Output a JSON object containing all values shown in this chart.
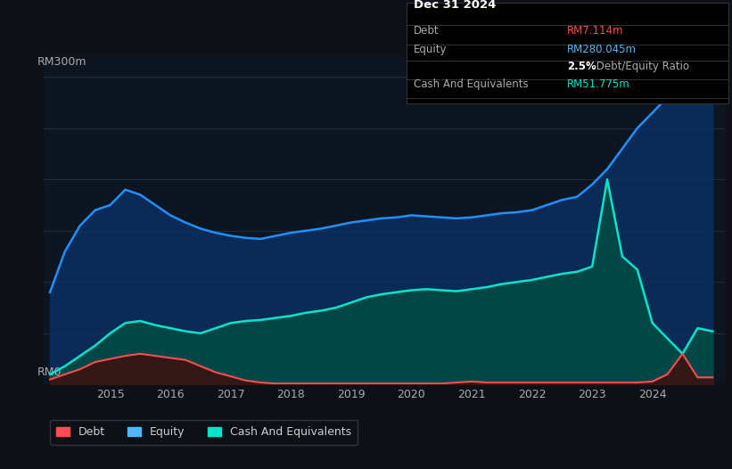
{
  "background_color": "#0d1117",
  "plot_bg_color": "#0d1520",
  "title_box": {
    "date": "Dec 31 2024",
    "debt_label": "Debt",
    "debt_value": "RM7.114m",
    "debt_color": "#ff4d4d",
    "equity_label": "Equity",
    "equity_value": "RM280.045m",
    "equity_color": "#4db8ff",
    "ratio_bold": "2.5%",
    "ratio_text": " Debt/Equity Ratio",
    "cash_label": "Cash And Equivalents",
    "cash_value": "RM51.775m",
    "cash_color": "#00e5cc",
    "box_bg": "#000000",
    "box_text": "#aaaaaa"
  },
  "ylabel_top": "RM300m",
  "ylabel_bottom": "RM0",
  "grid_color": "#1e2d3d",
  "line_color_equity": "#1e90ff",
  "line_color_cash": "#00e5cc",
  "line_color_debt": "#ff4d4d",
  "fill_color_equity": "#0a3060",
  "fill_color_cash": "#004d45",
  "fill_color_debt": "#3d1010",
  "equity_data": {
    "x": [
      2014.0,
      2014.25,
      2014.5,
      2014.75,
      2015.0,
      2015.25,
      2015.5,
      2015.75,
      2016.0,
      2016.25,
      2016.5,
      2016.75,
      2017.0,
      2017.25,
      2017.5,
      2017.75,
      2018.0,
      2018.25,
      2018.5,
      2018.75,
      2019.0,
      2019.25,
      2019.5,
      2019.75,
      2020.0,
      2020.25,
      2020.5,
      2020.75,
      2021.0,
      2021.25,
      2021.5,
      2021.75,
      2022.0,
      2022.25,
      2022.5,
      2022.75,
      2023.0,
      2023.25,
      2023.5,
      2023.75,
      2024.0,
      2024.25,
      2024.5,
      2024.75,
      2025.0
    ],
    "y": [
      90,
      130,
      155,
      170,
      175,
      190,
      185,
      175,
      165,
      158,
      152,
      148,
      145,
      143,
      142,
      145,
      148,
      150,
      152,
      155,
      158,
      160,
      162,
      163,
      165,
      164,
      163,
      162,
      163,
      165,
      167,
      168,
      170,
      175,
      180,
      183,
      195,
      210,
      230,
      250,
      265,
      280,
      295,
      300,
      298
    ]
  },
  "cash_data": {
    "x": [
      2014.0,
      2014.25,
      2014.5,
      2014.75,
      2015.0,
      2015.25,
      2015.5,
      2015.75,
      2016.0,
      2016.25,
      2016.5,
      2016.75,
      2017.0,
      2017.25,
      2017.5,
      2017.75,
      2018.0,
      2018.25,
      2018.5,
      2018.75,
      2019.0,
      2019.25,
      2019.5,
      2019.75,
      2020.0,
      2020.25,
      2020.5,
      2020.75,
      2021.0,
      2021.25,
      2021.5,
      2021.75,
      2022.0,
      2022.25,
      2022.5,
      2022.75,
      2023.0,
      2023.25,
      2023.5,
      2023.75,
      2024.0,
      2024.25,
      2024.5,
      2024.75,
      2025.0
    ],
    "y": [
      10,
      18,
      28,
      38,
      50,
      60,
      62,
      58,
      55,
      52,
      50,
      55,
      60,
      62,
      63,
      65,
      67,
      70,
      72,
      75,
      80,
      85,
      88,
      90,
      92,
      93,
      92,
      91,
      93,
      95,
      98,
      100,
      102,
      105,
      108,
      110,
      115,
      200,
      125,
      112,
      60,
      45,
      30,
      55,
      52
    ]
  },
  "debt_data": {
    "x": [
      2014.0,
      2014.25,
      2014.5,
      2014.75,
      2015.0,
      2015.25,
      2015.5,
      2015.75,
      2016.0,
      2016.25,
      2016.5,
      2016.75,
      2017.0,
      2017.25,
      2017.5,
      2017.75,
      2018.0,
      2018.25,
      2018.5,
      2018.75,
      2019.0,
      2019.25,
      2019.5,
      2019.75,
      2020.0,
      2020.25,
      2020.5,
      2020.75,
      2021.0,
      2021.25,
      2021.5,
      2021.75,
      2022.0,
      2022.25,
      2022.5,
      2022.75,
      2023.0,
      2023.25,
      2023.5,
      2023.75,
      2024.0,
      2024.25,
      2024.5,
      2024.75,
      2025.0
    ],
    "y": [
      5,
      10,
      15,
      22,
      25,
      28,
      30,
      28,
      26,
      24,
      18,
      12,
      8,
      4,
      2,
      1,
      1,
      1,
      1,
      1,
      1,
      1,
      1,
      1,
      1,
      1,
      1,
      2,
      3,
      2,
      2,
      2,
      2,
      2,
      2,
      2,
      2,
      2,
      2,
      2,
      3,
      10,
      30,
      7,
      7
    ]
  },
  "legend": [
    {
      "label": "Debt",
      "color": "#ff4d4d"
    },
    {
      "label": "Equity",
      "color": "#4db8ff"
    },
    {
      "label": "Cash And Equivalents",
      "color": "#00e5cc"
    }
  ],
  "xlim": [
    2013.9,
    2025.2
  ],
  "ylim": [
    0,
    320
  ]
}
